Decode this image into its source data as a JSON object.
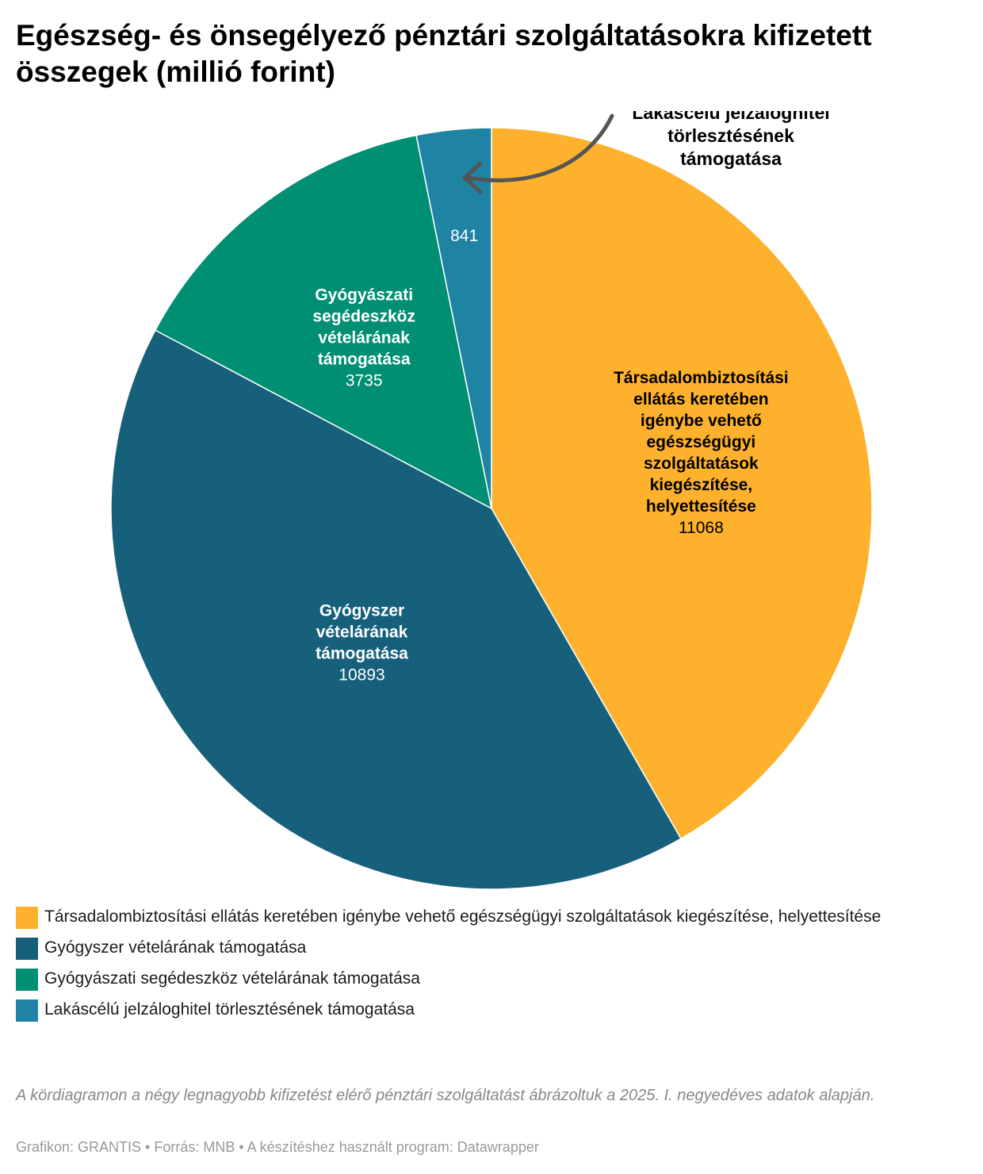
{
  "title": "Egészség- és önsegélyező pénztári szolgáltatásokra kifizetett összegek (millió forint)",
  "chart_data": {
    "type": "pie",
    "title": "Egészség- és önsegélyező pénztári szolgáltatásokra kifizetett összegek (millió forint)",
    "unit": "millió forint",
    "slices": [
      {
        "label": "Társadalombiztosítási ellátás keretében igénybe vehető egészségügyi szolgáltatások kiegészítése, helyettesítése",
        "value": 11068,
        "color": "#fdb12c"
      },
      {
        "label": "Gyógyszer vételárának támogatása",
        "value": 10893,
        "color": "#17607b"
      },
      {
        "label": "Gyógyászati segédeszköz vételárának támogatása",
        "value": 3735,
        "color": "#008f73"
      },
      {
        "label": "Lakáscélú jelzáloghitel törlesztésének támogatása",
        "value": 841,
        "color": "#1f83a3"
      }
    ],
    "legend_position": "bottom"
  },
  "slice_label_lines": [
    [
      "Társadalombiztosítási",
      "ellátás keretében",
      "igénybe vehető",
      "egészségügyi",
      "szolgáltatások",
      "kiegészítése,",
      "helyettesítése"
    ],
    [
      "Gyógyszer",
      "vételárának",
      "támogatása"
    ],
    [
      "Gyógyászati",
      "segédeszköz",
      "vételárának",
      "támogatása"
    ],
    []
  ],
  "annotation_lines": [
    "Lakáscélú jelzáloghitel",
    "törlesztésének",
    "támogatása"
  ],
  "legend": [
    {
      "label": "Társadalombiztosítási ellátás keretében igénybe vehető egészségügyi szolgáltatások kiegészítése, helyettesítése",
      "color": "#fdb12c"
    },
    {
      "label": "Gyógyszer vételárának támogatása",
      "color": "#17607b"
    },
    {
      "label": "Gyógyászati segédeszköz vételárának támogatása",
      "color": "#008f73"
    },
    {
      "label": "Lakáscélú jelzáloghitel törlesztésének támogatása",
      "color": "#1f83a3"
    }
  ],
  "note": "A kördiagramon a négy legnagyobb kifizetést elérő pénztári szolgáltatást ábrázoltuk a 2025. I. negyedéves adatok alapján.",
  "credits": "Grafikon: GRANTIS • Forrás: MNB • A készítéshez használt program: Datawrapper"
}
